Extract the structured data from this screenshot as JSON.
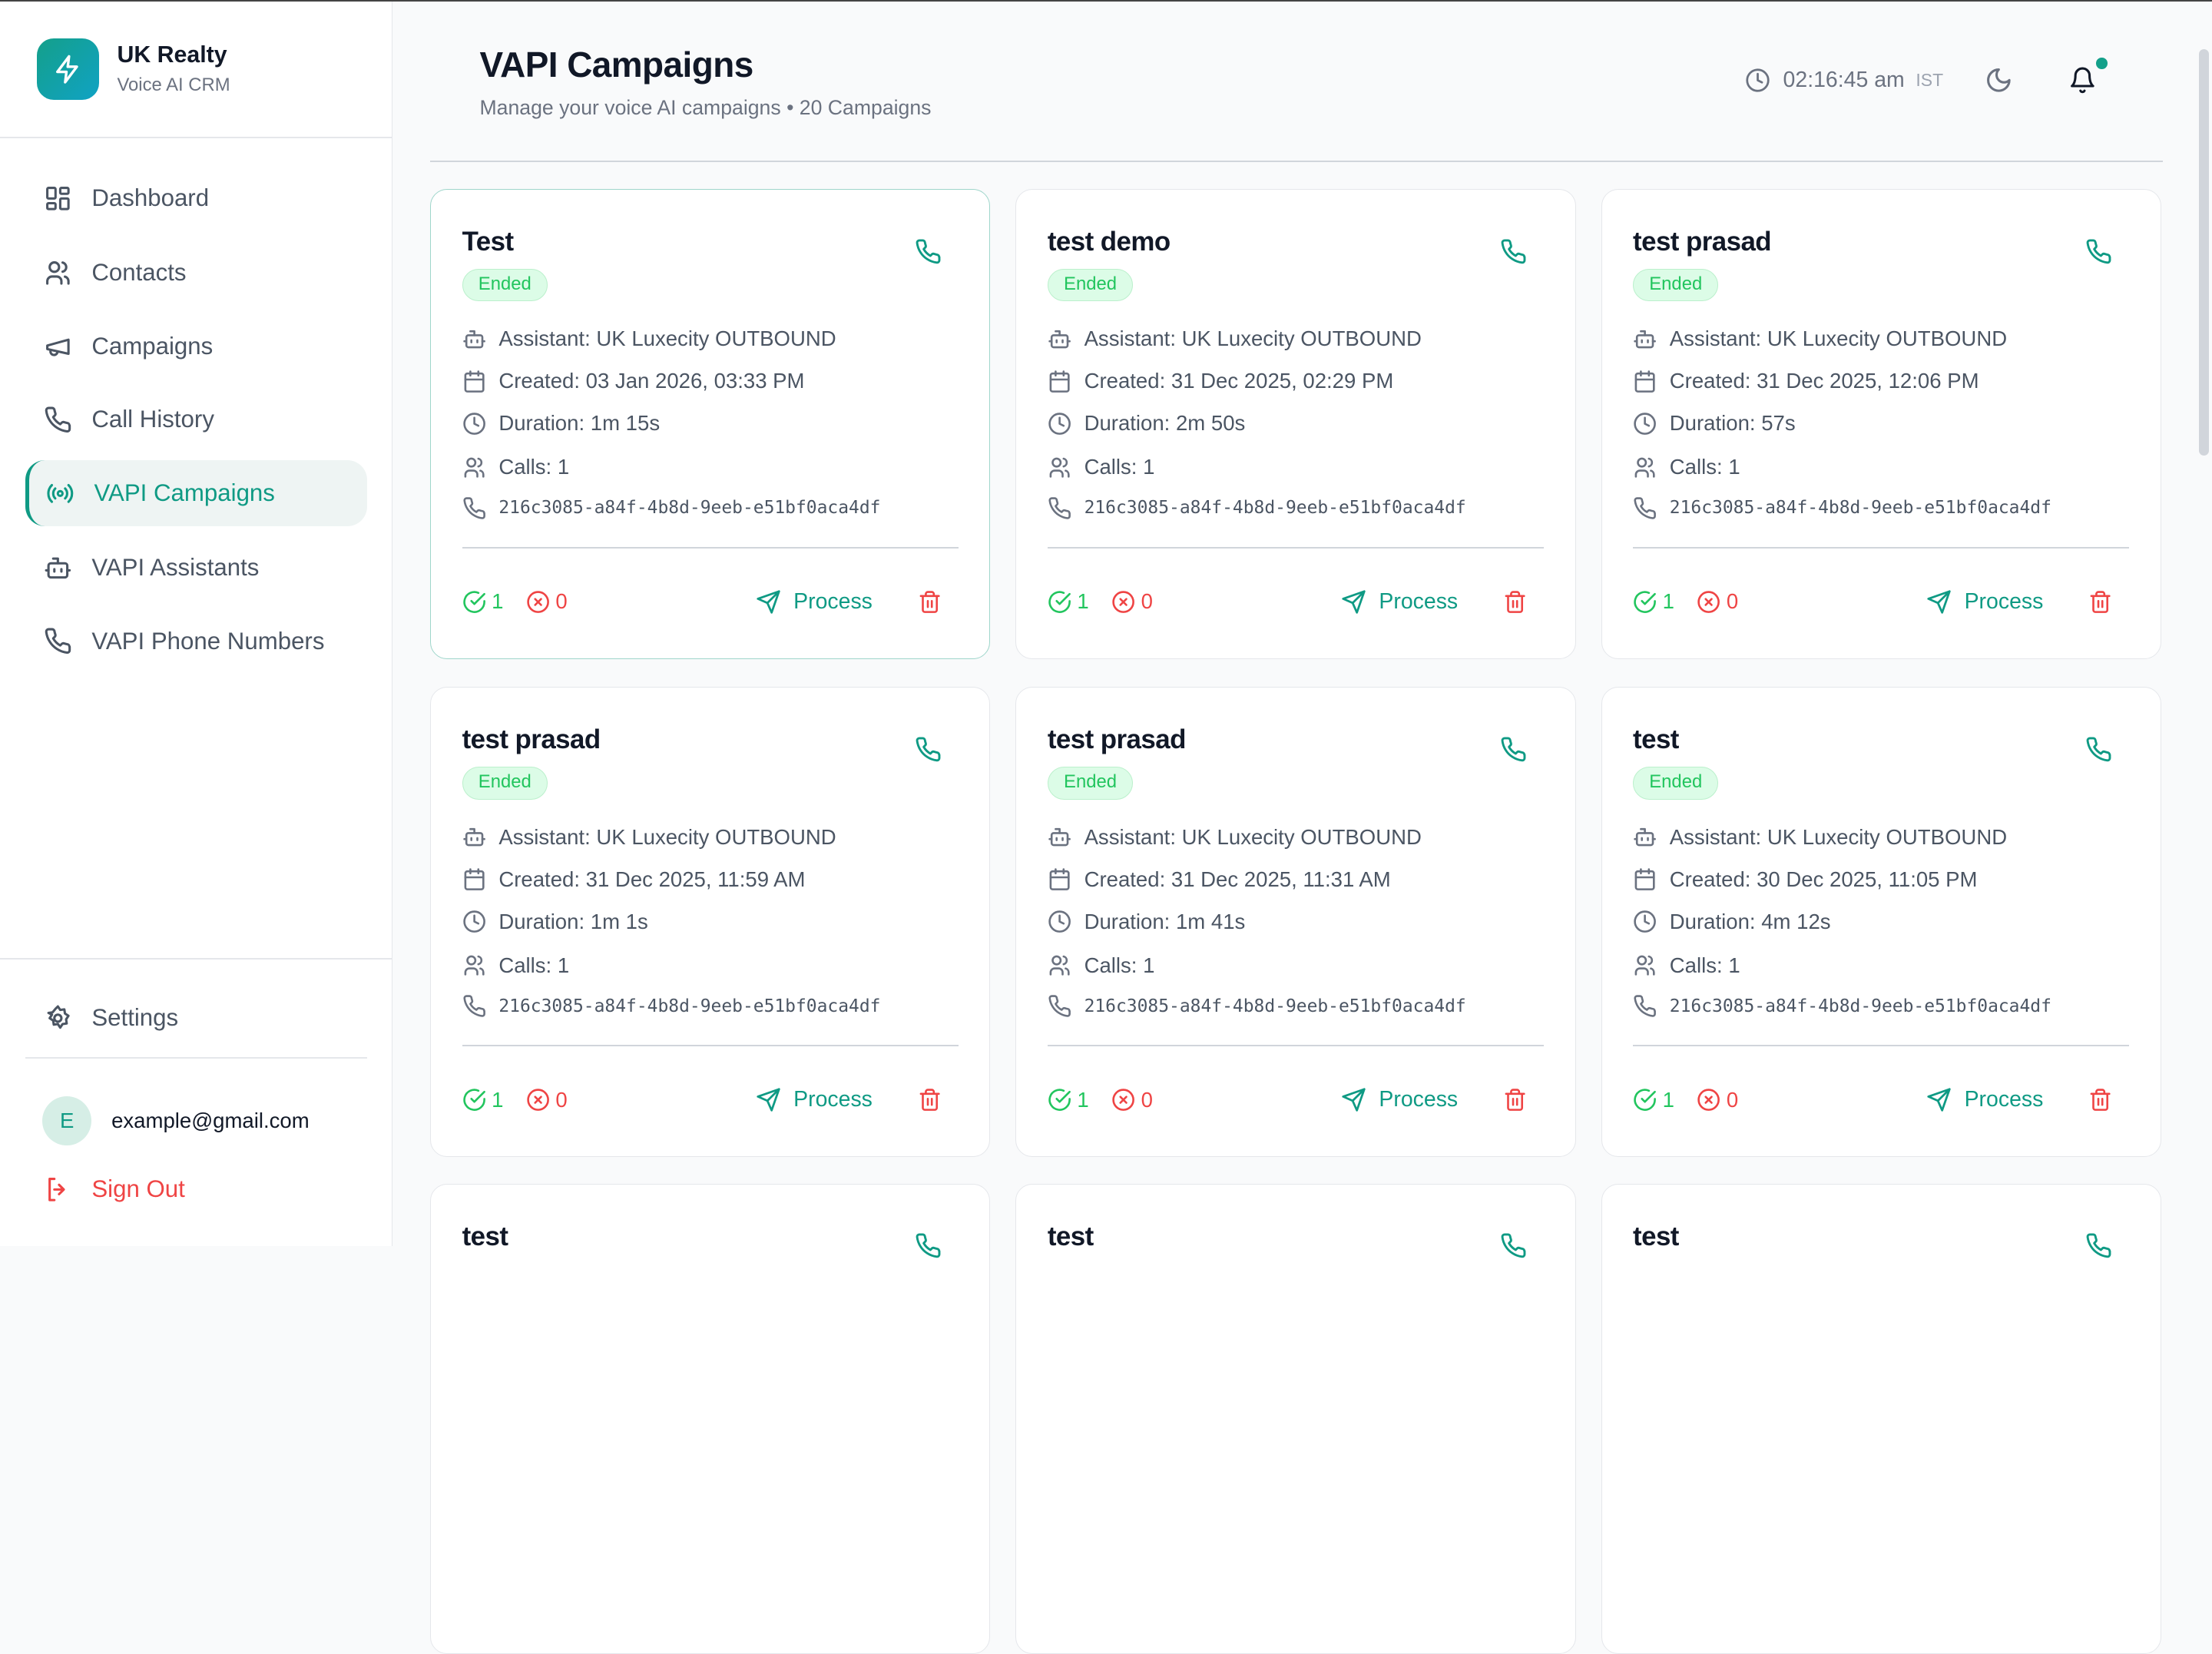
{
  "brand": {
    "title": "UK Realty",
    "subtitle": "Voice AI CRM"
  },
  "nav": [
    {
      "label": "Dashboard",
      "icon": "dashboard-icon"
    },
    {
      "label": "Contacts",
      "icon": "users-icon"
    },
    {
      "label": "Campaigns",
      "icon": "megaphone-icon"
    },
    {
      "label": "Call History",
      "icon": "phone-icon"
    },
    {
      "label": "VAPI Campaigns",
      "icon": "radio-icon",
      "active": true
    },
    {
      "label": "VAPI Assistants",
      "icon": "bot-icon"
    },
    {
      "label": "VAPI Phone Numbers",
      "icon": "phone-icon"
    }
  ],
  "settings_label": "Settings",
  "user": {
    "initial": "E",
    "email": "example@gmail.com"
  },
  "signout_label": "Sign Out",
  "header": {
    "title": "VAPI Campaigns",
    "subtitle": "Manage your voice AI campaigns • 20 Campaigns",
    "time": "02:16:45 am",
    "timezone": "IST"
  },
  "colors": {
    "accent": "#0f9a84",
    "success": "#22c55e",
    "danger": "#ef4444"
  },
  "process_label": "Process",
  "campaigns": [
    {
      "title": "Test",
      "status": "Ended",
      "assistant": "Assistant: UK Luxecity OUTBOUND",
      "created": "Created: 03 Jan 2026, 03:33 PM",
      "duration": "Duration: 1m 15s",
      "calls": "Calls: 1",
      "phone_id": "216c3085-a84f-4b8d-9eeb-e51bf0aca4df",
      "success": "1",
      "failed": "0"
    },
    {
      "title": "test demo",
      "status": "Ended",
      "assistant": "Assistant: UK Luxecity OUTBOUND",
      "created": "Created: 31 Dec 2025, 02:29 PM",
      "duration": "Duration: 2m 50s",
      "calls": "Calls: 1",
      "phone_id": "216c3085-a84f-4b8d-9eeb-e51bf0aca4df",
      "success": "1",
      "failed": "0"
    },
    {
      "title": "test prasad",
      "status": "Ended",
      "assistant": "Assistant: UK Luxecity OUTBOUND",
      "created": "Created: 31 Dec 2025, 12:06 PM",
      "duration": "Duration: 57s",
      "calls": "Calls: 1",
      "phone_id": "216c3085-a84f-4b8d-9eeb-e51bf0aca4df",
      "success": "1",
      "failed": "0"
    },
    {
      "title": "test prasad",
      "status": "Ended",
      "assistant": "Assistant: UK Luxecity OUTBOUND",
      "created": "Created: 31 Dec 2025, 11:59 AM",
      "duration": "Duration: 1m 1s",
      "calls": "Calls: 1",
      "phone_id": "216c3085-a84f-4b8d-9eeb-e51bf0aca4df",
      "success": "1",
      "failed": "0"
    },
    {
      "title": "test prasad",
      "status": "Ended",
      "assistant": "Assistant: UK Luxecity OUTBOUND",
      "created": "Created: 31 Dec 2025, 11:31 AM",
      "duration": "Duration: 1m 41s",
      "calls": "Calls: 1",
      "phone_id": "216c3085-a84f-4b8d-9eeb-e51bf0aca4df",
      "success": "1",
      "failed": "0"
    },
    {
      "title": "test",
      "status": "Ended",
      "assistant": "Assistant: UK Luxecity OUTBOUND",
      "created": "Created: 30 Dec 2025, 11:05 PM",
      "duration": "Duration: 4m 12s",
      "calls": "Calls: 1",
      "phone_id": "216c3085-a84f-4b8d-9eeb-e51bf0aca4df",
      "success": "1",
      "failed": "0"
    },
    {
      "title": "test"
    },
    {
      "title": "test"
    },
    {
      "title": "test"
    }
  ]
}
